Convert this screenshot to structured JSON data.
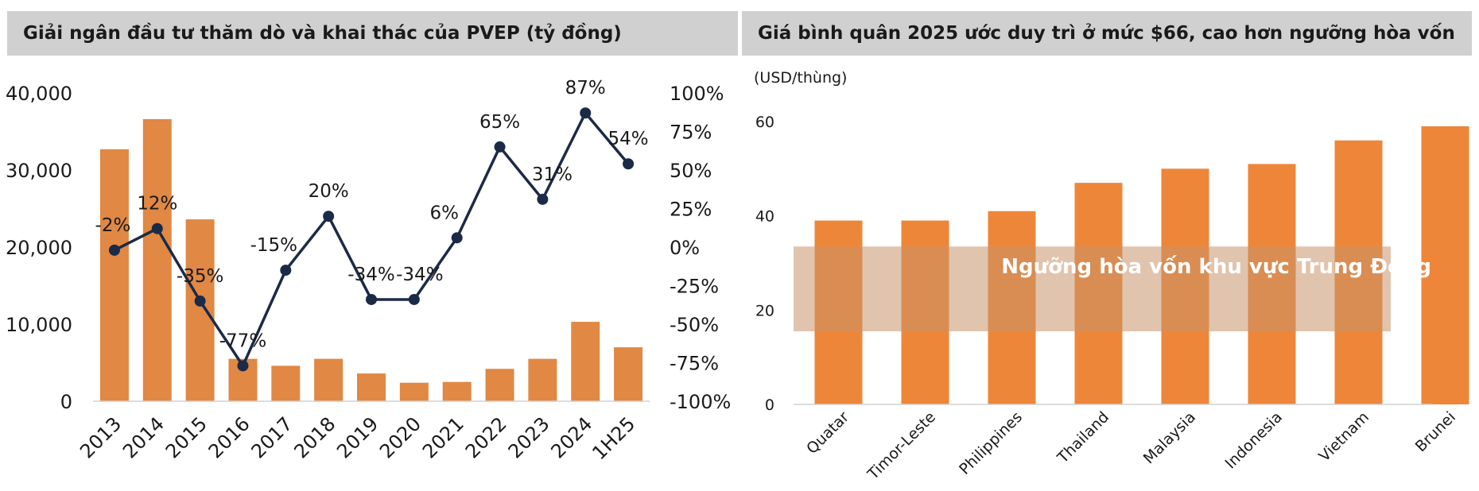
{
  "left_panel": {
    "title": "Giải ngân đầu tư thăm dò và khai thác của PVEP (tỷ đồng)"
  },
  "right_panel": {
    "title": "Giá bình quân 2025 ước duy trì ở mức $66, cao hơn ngưỡng hòa vốn"
  },
  "colors": {
    "bar_left": "#e08844",
    "bar_right": "#ee8639",
    "line": "#1b2a47",
    "header_bg": "#d0d0d0",
    "band": "#ddb99a"
  },
  "chart_data": [
    {
      "type": "bar",
      "title": "Giải ngân đầu tư thăm dò và khai thác của PVEP (tỷ đồng)",
      "categories": [
        "2013",
        "2014",
        "2015",
        "2016",
        "2017",
        "2018",
        "2019",
        "2020",
        "2021",
        "2022",
        "2023",
        "2024",
        "1H25"
      ],
      "series": [
        {
          "values": [
            32700,
            36600,
            23600,
            5500,
            4600,
            5500,
            3600,
            2400,
            2500,
            4200,
            5500,
            10300,
            7000
          ]
        },
        {
          "type": "line",
          "axis": "right",
          "values": [
            -2,
            12,
            -35,
            -77,
            -15,
            20,
            -34,
            -34,
            6,
            65,
            31,
            87,
            54
          ],
          "labels": [
            "-2%",
            "12%",
            "-35%",
            "-77%",
            "-15%",
            "20%",
            "-34%",
            "-34%",
            "6%",
            "65%",
            "31%",
            "87%",
            "54%"
          ]
        }
      ],
      "ylim": [
        0,
        40000
      ],
      "yticks": [
        "0",
        "10,000",
        "20,000",
        "30,000",
        "40,000"
      ],
      "y2lim": [
        -100,
        100
      ],
      "y2ticks": [
        "-100%",
        "-75%",
        "-50%",
        "-25%",
        "0%",
        "25%",
        "50%",
        "75%",
        "100%"
      ],
      "grid": false,
      "legend": "none"
    },
    {
      "type": "bar",
      "title": "Giá bình quân 2025 ước duy trì ở mức $66, cao hơn ngưỡng hòa vốn",
      "ylabel": "(USD/thùng)",
      "categories": [
        "Quatar",
        "Timor-Leste",
        "Philippines",
        "Thailand",
        "Malaysia",
        "Indonesia",
        "Vietnam",
        "Brunei"
      ],
      "values": [
        39,
        39,
        41,
        47,
        50,
        51,
        56,
        59
      ],
      "ylim": [
        0,
        60
      ],
      "yticks": [
        "0",
        "20",
        "40",
        "60"
      ],
      "band": {
        "from": 15.5,
        "to": 33.5,
        "label": "Ngưỡng hòa vốn khu vực Trung Đông"
      },
      "grid": false,
      "legend": "none"
    }
  ]
}
